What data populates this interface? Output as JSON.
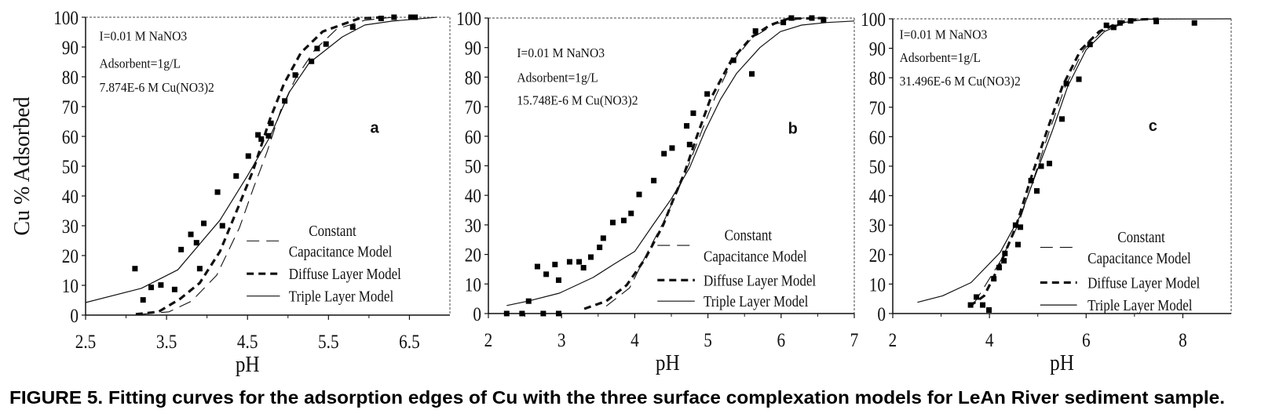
{
  "caption": "FIGURE 5.  Fitting curves for the adsorption edges of Cu with the three surface complexation models for LeAn River sediment sample.",
  "chart_data": [
    {
      "type": "scatter+line",
      "panel_label": "a",
      "xlabel": "pH",
      "ylabel": "Cu % Adsorbed",
      "xlim": [
        2.5,
        7.0
      ],
      "ylim": [
        0,
        100
      ],
      "xticks": [
        "2.5",
        "3.5",
        "4.5",
        "5.5",
        "6.5"
      ],
      "yticks": [
        "0",
        "10",
        "20",
        "30",
        "40",
        "50",
        "60",
        "70",
        "80",
        "90",
        "100"
      ],
      "annotations": [
        "I=0.01 M NaNO3",
        "Adsorbent=1g/L",
        "7.874E-6 M Cu(NO3)2"
      ],
      "legend": {
        "constant_1": "Constant",
        "constant_2": "Capacitance Model",
        "diffuse": "Diffuse Layer Model",
        "triple": "Triple Layer Model"
      },
      "points": [
        [
          3.11,
          15.6
        ],
        [
          3.21,
          5.1
        ],
        [
          3.31,
          9.3
        ],
        [
          3.43,
          10.1
        ],
        [
          3.6,
          8.6
        ],
        [
          3.68,
          22.0
        ],
        [
          3.8,
          27.1
        ],
        [
          3.87,
          24.3
        ],
        [
          3.91,
          15.6
        ],
        [
          3.96,
          30.8
        ],
        [
          4.13,
          41.3
        ],
        [
          4.19,
          30.0
        ],
        [
          4.36,
          46.7
        ],
        [
          4.51,
          53.4
        ],
        [
          4.63,
          60.5
        ],
        [
          4.67,
          59.1
        ],
        [
          4.76,
          60.2
        ],
        [
          4.79,
          64.4
        ],
        [
          4.96,
          71.9
        ],
        [
          5.09,
          80.6
        ],
        [
          5.29,
          85.2
        ],
        [
          5.36,
          89.5
        ],
        [
          5.47,
          91.0
        ],
        [
          5.8,
          96.7
        ],
        [
          6.15,
          99.6
        ],
        [
          6.31,
          100
        ],
        [
          6.52,
          100
        ],
        [
          6.57,
          100
        ]
      ],
      "series": [
        {
          "name": "Triple Layer Model",
          "style": "solid",
          "points": [
            [
              2.5,
              4.2
            ],
            [
              3.19,
              9
            ],
            [
              3.64,
              15.2
            ],
            [
              4.16,
              31.9
            ],
            [
              4.5,
              46.8
            ],
            [
              4.78,
              60
            ],
            [
              5.02,
              75
            ],
            [
              5.26,
              84.6
            ],
            [
              5.67,
              93.4
            ],
            [
              5.95,
              97.4
            ],
            [
              6.29,
              98.7
            ],
            [
              6.84,
              100
            ]
          ]
        },
        {
          "name": "Diffuse Layer Model",
          "style": "dashed",
          "points": [
            [
              3.12,
              0.3
            ],
            [
              3.4,
              1.1
            ],
            [
              3.67,
              5.5
            ],
            [
              3.91,
              10.8
            ],
            [
              4.16,
              21.4
            ],
            [
              4.4,
              37.2
            ],
            [
              4.57,
              48.6
            ],
            [
              4.78,
              66
            ],
            [
              4.95,
              77.6
            ],
            [
              5.16,
              88.1
            ],
            [
              5.43,
              95.2
            ],
            [
              5.88,
              99.6
            ],
            [
              6.2,
              100
            ]
          ]
        },
        {
          "name": "Constant Capacitance Model",
          "style": "long-dash",
          "points": [
            [
              3.19,
              0.3
            ],
            [
              3.53,
              1.1
            ],
            [
              3.81,
              4.7
            ],
            [
              4.12,
              13.4
            ],
            [
              4.4,
              29.3
            ],
            [
              4.57,
              42.4
            ],
            [
              4.74,
              54.7
            ],
            [
              4.91,
              68.8
            ],
            [
              5.09,
              79.3
            ],
            [
              5.33,
              89
            ],
            [
              5.6,
              96
            ],
            [
              5.95,
              99
            ],
            [
              6.3,
              100
            ]
          ]
        }
      ]
    },
    {
      "type": "scatter+line",
      "panel_label": "b",
      "xlabel": "pH",
      "xlim": [
        2,
        7
      ],
      "ylim": [
        0,
        100
      ],
      "xticks": [
        "2",
        "3",
        "4",
        "5",
        "6",
        "7"
      ],
      "yticks": [
        "0",
        "10",
        "20",
        "30",
        "40",
        "50",
        "60",
        "70",
        "80",
        "90",
        "100"
      ],
      "annotations": [
        "I=0.01 M  NaNO3",
        "Adsorbent=1g/L",
        "15.748E-6 M Cu(NO3)2"
      ],
      "legend": {
        "constant_1": "Constant",
        "constant_2": "Capacitance Model",
        "diffuse": "Diffuse Layer Model",
        "triple": "Triple Layer Model"
      },
      "points": [
        [
          2.25,
          0
        ],
        [
          2.46,
          0
        ],
        [
          2.75,
          0
        ],
        [
          2.96,
          0
        ],
        [
          2.55,
          4.2
        ],
        [
          2.67,
          15.9
        ],
        [
          2.79,
          13.3
        ],
        [
          2.91,
          16.6
        ],
        [
          2.96,
          11.3
        ],
        [
          3.11,
          17.5
        ],
        [
          3.24,
          17.5
        ],
        [
          3.3,
          15.5
        ],
        [
          3.4,
          19.1
        ],
        [
          3.52,
          22.4
        ],
        [
          3.57,
          25.5
        ],
        [
          3.7,
          30.8
        ],
        [
          3.85,
          31.5
        ],
        [
          3.95,
          33.9
        ],
        [
          4.06,
          40.3
        ],
        [
          4.26,
          45
        ],
        [
          4.4,
          54.1
        ],
        [
          4.51,
          56
        ],
        [
          4.71,
          63.5
        ],
        [
          4.75,
          57.2
        ],
        [
          4.8,
          67.8
        ],
        [
          4.99,
          74.3
        ],
        [
          5.35,
          85.7
        ],
        [
          5.6,
          81.1
        ],
        [
          5.65,
          95.6
        ],
        [
          6.03,
          98.5
        ],
        [
          6.14,
          100
        ],
        [
          6.42,
          100
        ],
        [
          6.58,
          99.4
        ]
      ],
      "series": [
        {
          "name": "Triple Layer Model",
          "style": "solid",
          "points": [
            [
              2.25,
              2.7
            ],
            [
              2.54,
              4.2
            ],
            [
              2.97,
              6.9
            ],
            [
              3.43,
              12.2
            ],
            [
              3.71,
              16.6
            ],
            [
              4.0,
              21
            ],
            [
              4.25,
              30
            ],
            [
              4.5,
              38.8
            ],
            [
              4.75,
              49.4
            ],
            [
              4.96,
              61.8
            ],
            [
              5.17,
              72.4
            ],
            [
              5.39,
              81.2
            ],
            [
              5.71,
              90
            ],
            [
              5.99,
              95.4
            ],
            [
              6.28,
              97.6
            ],
            [
              6.63,
              98.5
            ],
            [
              7.0,
              99
            ]
          ]
        },
        {
          "name": "Diffuse Layer Model",
          "style": "dashed",
          "points": [
            [
              3.31,
              1.6
            ],
            [
              3.61,
              4.2
            ],
            [
              3.89,
              9.6
            ],
            [
              4.14,
              18.4
            ],
            [
              4.39,
              30
            ],
            [
              4.53,
              38.8
            ],
            [
              4.68,
              47.6
            ],
            [
              4.85,
              60
            ],
            [
              5.03,
              72.4
            ],
            [
              5.32,
              85.7
            ],
            [
              5.6,
              93.6
            ],
            [
              5.85,
              97.6
            ],
            [
              6.1,
              99.8
            ],
            [
              6.6,
              100
            ]
          ]
        },
        {
          "name": "Constant Capacitance Model",
          "style": "long-dash",
          "points": [
            [
              3.61,
              2.5
            ],
            [
              3.93,
              8.7
            ],
            [
              4.18,
              21
            ],
            [
              4.39,
              30.8
            ],
            [
              4.57,
              40.5
            ],
            [
              4.75,
              51.2
            ],
            [
              4.93,
              62.7
            ],
            [
              5.1,
              73.3
            ],
            [
              5.32,
              84.8
            ],
            [
              5.6,
              93.2
            ],
            [
              5.92,
              98
            ],
            [
              6.3,
              100
            ],
            [
              6.6,
              100
            ]
          ]
        }
      ]
    },
    {
      "type": "scatter+line",
      "panel_label": "c",
      "xlabel": "pH",
      "xlim": [
        2,
        9
      ],
      "ylim": [
        0,
        100
      ],
      "xticks": [
        "2",
        "4",
        "6",
        "8"
      ],
      "yticks": [
        "0",
        "10",
        "20",
        "30",
        "40",
        "50",
        "60",
        "70",
        "80",
        "90",
        "100"
      ],
      "annotations": [
        "I=0.01 M NaNO3",
        "Adsorbent=1g/L",
        "31.496E-6 M Cu(NO3)2"
      ],
      "legend": {
        "constant_1": "Constant",
        "constant_2": "Capacitance Model",
        "diffuse": "Diffuse Layer Model",
        "triple": "Triple Layer Model"
      },
      "points": [
        [
          3.61,
          2.9
        ],
        [
          3.73,
          5.6
        ],
        [
          3.86,
          2.9
        ],
        [
          3.99,
          1.2
        ],
        [
          4.09,
          11.8
        ],
        [
          4.2,
          15.6
        ],
        [
          4.3,
          17.9
        ],
        [
          4.32,
          20.4
        ],
        [
          4.54,
          30
        ],
        [
          4.64,
          29.3
        ],
        [
          4.59,
          23.4
        ],
        [
          4.86,
          45.1
        ],
        [
          4.98,
          41.6
        ],
        [
          5.07,
          50
        ],
        [
          5.24,
          50.9
        ],
        [
          5.5,
          66
        ],
        [
          5.59,
          78
        ],
        [
          5.85,
          79.5
        ],
        [
          6.08,
          91.3
        ],
        [
          6.42,
          97.8
        ],
        [
          6.57,
          97.1
        ],
        [
          6.7,
          98.6
        ],
        [
          6.92,
          99.3
        ],
        [
          7.45,
          99.1
        ],
        [
          8.24,
          98.6
        ]
      ],
      "series": [
        {
          "name": "Triple Layer Model",
          "style": "solid",
          "points": [
            [
              2.51,
              3.8
            ],
            [
              3.03,
              6
            ],
            [
              3.62,
              10.5
            ],
            [
              4.22,
              20.7
            ],
            [
              4.65,
              33.6
            ],
            [
              4.97,
              47.8
            ],
            [
              5.3,
              62
            ],
            [
              5.62,
              77.1
            ],
            [
              6.0,
              89.5
            ],
            [
              6.38,
              95.7
            ],
            [
              6.81,
              98.8
            ],
            [
              7.24,
              99.9
            ],
            [
              9,
              100
            ]
          ]
        },
        {
          "name": "Diffuse Layer Model",
          "style": "dashed",
          "points": [
            [
              3.59,
              2.5
            ],
            [
              3.89,
              6
            ],
            [
              4.22,
              16.7
            ],
            [
              4.54,
              29.1
            ],
            [
              4.86,
              46
            ],
            [
              5.19,
              62
            ],
            [
              5.51,
              77.1
            ],
            [
              5.89,
              89.5
            ],
            [
              6.27,
              95.7
            ],
            [
              6.7,
              98.8
            ],
            [
              6.97,
              99.7
            ],
            [
              7.5,
              100
            ]
          ]
        },
        {
          "name": "Constant Capacitance Model",
          "style": "long-dash",
          "points": [
            [
              3.68,
              3.4
            ],
            [
              4.22,
              17.6
            ],
            [
              4.59,
              30
            ],
            [
              4.92,
              46
            ],
            [
              5.24,
              62
            ],
            [
              5.57,
              77.1
            ],
            [
              5.95,
              89.5
            ],
            [
              6.32,
              95.7
            ],
            [
              6.81,
              99.2
            ],
            [
              7.5,
              100
            ]
          ]
        }
      ]
    }
  ]
}
